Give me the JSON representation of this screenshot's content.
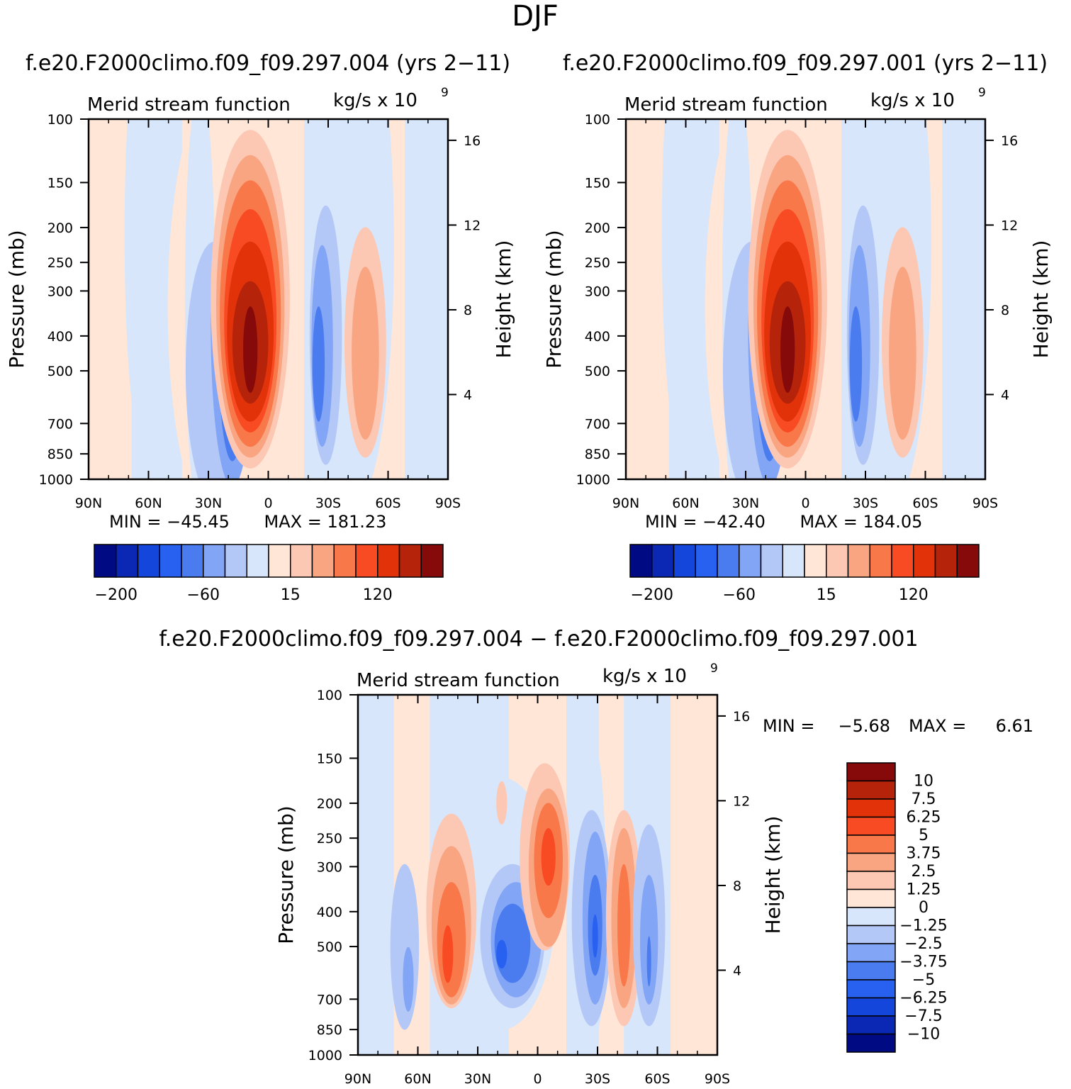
{
  "figure": {
    "season": "DJF",
    "title_left": "f.e20.F2000climo.f09_f09.297.004 (yrs 2−11)",
    "title_right": "f.e20.F2000climo.f09_f09.297.001 (yrs 2−11)",
    "title_diff": "f.e20.F2000climo.f09_f09.297.004 − f.e20.F2000climo.f09_f09.297.001"
  },
  "chart_data": [
    {
      "type": "contour",
      "variable": "Merid stream function",
      "units": "kg/s x 10",
      "units_exponent": "9",
      "ylabel": "Pressure (mb)",
      "ylabel_right": "Height (km)",
      "y_ticks": [
        "100",
        "150",
        "200",
        "250",
        "300",
        "400",
        "500",
        "700",
        "850",
        "1000"
      ],
      "y_ticks_right": [
        "16",
        "12",
        "8",
        "4"
      ],
      "x_ticks": [
        "90N",
        "60N",
        "30N",
        "0",
        "30S",
        "60S",
        "90S"
      ],
      "min_text": "MIN = −45.45",
      "max_text": "MAX = 181.23",
      "min": -45.45,
      "max": 181.23,
      "colorbar_labels": [
        "−200",
        "−60",
        "15",
        "120"
      ]
    },
    {
      "type": "contour",
      "variable": "Merid stream function",
      "units": "kg/s x 10",
      "units_exponent": "9",
      "ylabel": "Pressure (mb)",
      "ylabel_right": "Height (km)",
      "y_ticks": [
        "100",
        "150",
        "200",
        "250",
        "300",
        "400",
        "500",
        "700",
        "850",
        "1000"
      ],
      "y_ticks_right": [
        "16",
        "12",
        "8",
        "4"
      ],
      "x_ticks": [
        "90N",
        "60N",
        "30N",
        "0",
        "30S",
        "60S",
        "90S"
      ],
      "min_text": "MIN = −42.40",
      "max_text": "MAX = 184.05",
      "min": -42.4,
      "max": 184.05,
      "colorbar_labels": [
        "−200",
        "−60",
        "15",
        "120"
      ]
    },
    {
      "type": "contour",
      "variable": "Merid stream function",
      "units": "kg/s x 10",
      "units_exponent": "9",
      "ylabel": "Pressure (mb)",
      "ylabel_right": "Height (km)",
      "y_ticks": [
        "100",
        "150",
        "200",
        "250",
        "300",
        "400",
        "500",
        "700",
        "850",
        "1000"
      ],
      "y_ticks_right": [
        "16",
        "12",
        "8",
        "4"
      ],
      "x_ticks": [
        "90N",
        "60N",
        "30N",
        "0",
        "30S",
        "60S",
        "90S"
      ],
      "min_label": "MIN =",
      "min_value": "−5.68",
      "max_label": "MAX =",
      "max_value": "6.61",
      "min": -5.68,
      "max": 6.61,
      "colorbar_levels": [
        "10",
        "7.5",
        "6.25",
        "5",
        "3.75",
        "2.5",
        "1.25",
        "0",
        "−1.25",
        "−2.5",
        "−3.75",
        "−5",
        "−6.25",
        "−7.5",
        "−10"
      ]
    }
  ],
  "colors": {
    "scale": [
      "#000a82",
      "#0a28b4",
      "#1446dc",
      "#2860f0",
      "#4a7cf0",
      "#82a5f5",
      "#b4c8f8",
      "#d7e6fa",
      "#ffe6d7",
      "#fcc8b4",
      "#f9a582",
      "#f9784a",
      "#f94b23",
      "#e1320a",
      "#b4230a",
      "#870a0a"
    ]
  }
}
